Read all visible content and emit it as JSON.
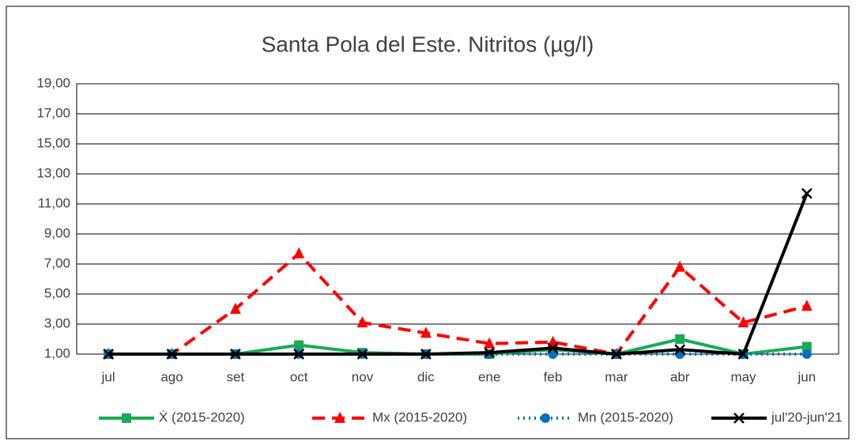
{
  "chart_data": {
    "type": "line",
    "title": "Santa Pola del Este. Nitritos (µg/l)",
    "categories": [
      "jul",
      "ago",
      "set",
      "oct",
      "nov",
      "dic",
      "ene",
      "feb",
      "mar",
      "abr",
      "may",
      "jun"
    ],
    "series": [
      {
        "name": "Ẋ (2015-2020)",
        "color": "#1aaa55",
        "line_style": "solid",
        "marker": "square",
        "values": [
          1,
          1,
          1,
          1.6,
          1.1,
          1,
          1,
          1.3,
          1,
          2.0,
          1,
          1.5
        ]
      },
      {
        "name": "Mx (2015-2020)",
        "color": "#ff0000",
        "line_style": "dashed",
        "marker": "triangle",
        "values": [
          1,
          1,
          4.0,
          7.7,
          3.1,
          2.4,
          1.7,
          1.8,
          1,
          6.8,
          3.1,
          4.2
        ]
      },
      {
        "name": "Mn (2015-2020)",
        "color": "#0070c0",
        "line_style": "dotted",
        "marker": "circle",
        "values": [
          1,
          1,
          1,
          1,
          1,
          1,
          1,
          1,
          1,
          1,
          1,
          1
        ]
      },
      {
        "name": "jul'20-jun'21",
        "color": "#000000",
        "line_style": "solid",
        "marker": "x",
        "values": [
          1,
          1,
          1,
          1,
          1,
          1,
          1.1,
          1.4,
          1,
          1.3,
          1,
          11.7
        ]
      }
    ],
    "ylim": [
      1,
      19
    ],
    "yticks": [
      {
        "value": 1,
        "label": "1,00"
      },
      {
        "value": 3,
        "label": "3,00"
      },
      {
        "value": 5,
        "label": "5,00"
      },
      {
        "value": 7,
        "label": "7,00"
      },
      {
        "value": 9,
        "label": "9,00"
      },
      {
        "value": 11,
        "label": "11,00"
      },
      {
        "value": 13,
        "label": "13,00"
      },
      {
        "value": 15,
        "label": "15,00"
      },
      {
        "value": 17,
        "label": "17,00"
      },
      {
        "value": 19,
        "label": "19,00"
      }
    ],
    "grid": true,
    "legend": "bottom"
  }
}
